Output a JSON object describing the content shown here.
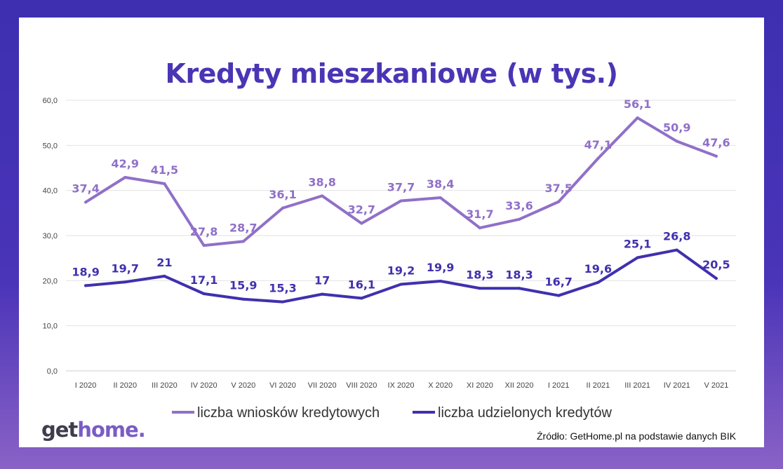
{
  "chart_data": {
    "type": "line",
    "title": "Kredyty mieszkaniowe (w tys.)",
    "categories": [
      "I 2020",
      "II 2020",
      "III 2020",
      "IV 2020",
      "V 2020",
      "VI 2020",
      "VII 2020",
      "VIII 2020",
      "IX 2020",
      "X 2020",
      "XI 2020",
      "XII 2020",
      "I 2021",
      "II 2021",
      "III 2021",
      "IV 2021",
      "V 2021"
    ],
    "ylim": [
      0,
      60
    ],
    "yticks": [
      "0,0",
      "10,0",
      "20,0",
      "30,0",
      "40,0",
      "50,0",
      "60,0"
    ],
    "grid": true,
    "legend_position": "bottom",
    "series": [
      {
        "name": "liczba wniosków kredytowych",
        "color": "#9070c8",
        "values": [
          37.4,
          42.9,
          41.5,
          27.8,
          28.7,
          36.1,
          38.8,
          32.7,
          37.7,
          38.4,
          31.7,
          33.6,
          37.5,
          47.1,
          56.1,
          50.9,
          47.6
        ],
        "labels": [
          "37,4",
          "42,9",
          "41,5",
          "27,8",
          "28,7",
          "36,1",
          "38,8",
          "32,7",
          "37,7",
          "38,4",
          "31,7",
          "33,6",
          "37,5",
          "47,1",
          "56,1",
          "50,9",
          "47,6"
        ]
      },
      {
        "name": "liczba udzielonych kredytów",
        "color": "#4030ae",
        "values": [
          18.9,
          19.7,
          21,
          17.1,
          15.9,
          15.3,
          17,
          16.1,
          19.2,
          19.9,
          18.3,
          18.3,
          16.7,
          19.6,
          25.1,
          26.8,
          20.5
        ],
        "labels": [
          "18,9",
          "19,7",
          "21",
          "17,1",
          "15,9",
          "15,3",
          "17",
          "16,1",
          "19,2",
          "19,9",
          "18,3",
          "18,3",
          "16,7",
          "19,6",
          "25,1",
          "26,8",
          "20,5"
        ]
      }
    ]
  },
  "footer": {
    "logo_get": "get",
    "logo_home": "home.",
    "source": "Źródło: GetHome.pl na podstawie danych BIK"
  }
}
